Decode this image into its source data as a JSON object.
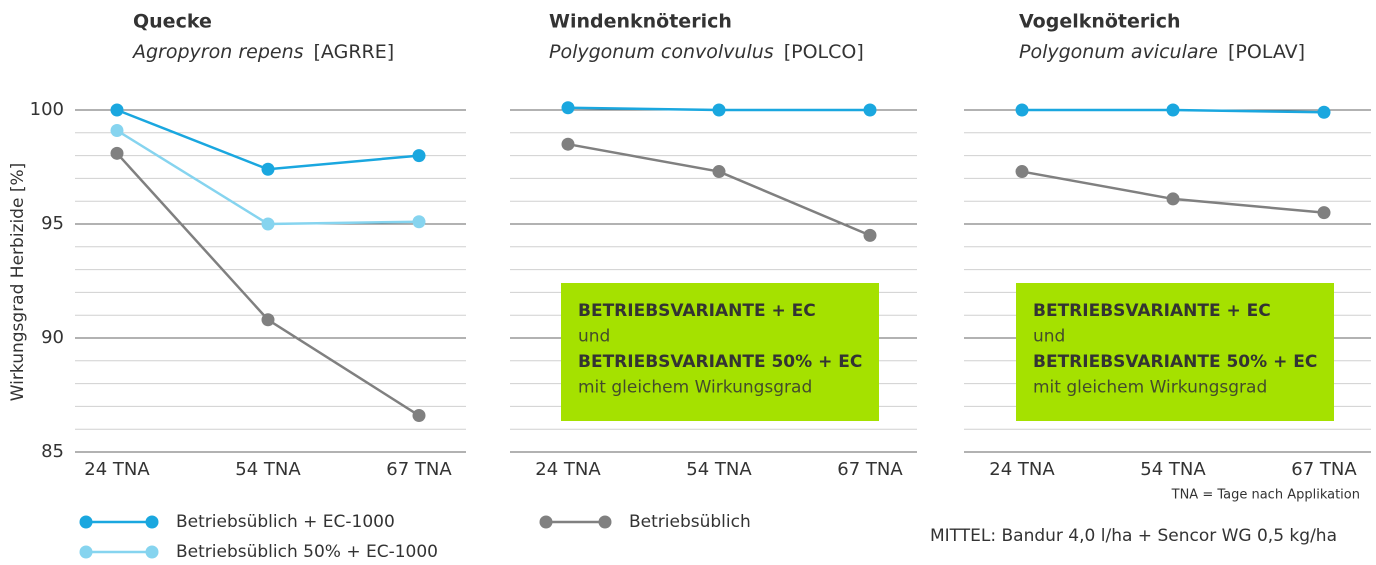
{
  "chart_data": [
    {
      "type": "line",
      "title": "Quecke",
      "species": "Agropyron repens",
      "code": "[AGRRE]",
      "y_label": "Wirkungsgrad Herbizide [%]",
      "categories": [
        "24 TNA",
        "54 TNA",
        "67 TNA"
      ],
      "series": [
        {
          "name": "Betriebsüblich + EC-1000",
          "color": "#1aa7df",
          "values": [
            100,
            97.4,
            98
          ]
        },
        {
          "name": "Betriebsüblich 50% + EC-1000",
          "color": "#86d4ef",
          "values": [
            99.1,
            95.0,
            95.1
          ]
        },
        {
          "name": "Betriebsüblich",
          "color": "#808080",
          "values": [
            98.1,
            90.8,
            86.6
          ]
        }
      ],
      "ylim": [
        85,
        101
      ],
      "yticks": [
        85,
        90,
        95,
        100
      ],
      "yticks_minor": [
        86,
        87,
        88,
        89,
        91,
        92,
        93,
        94,
        96,
        97,
        98,
        99
      ],
      "grid": true
    },
    {
      "type": "line",
      "title": "Windenknöterich",
      "species": "Polygonum convolvulus",
      "code": "[POLCO]",
      "categories": [
        "24 TNA",
        "54 TNA",
        "67 TNA"
      ],
      "series": [
        {
          "color": "#1aa7df",
          "values": [
            100.1,
            100,
            100
          ]
        },
        {
          "color": "#808080",
          "values": [
            98.5,
            97.3,
            94.5
          ]
        }
      ],
      "ylim": [
        85,
        101
      ],
      "yticks": [
        85,
        90,
        95,
        100
      ],
      "yticks_minor": [
        86,
        87,
        88,
        89,
        91,
        92,
        93,
        94,
        96,
        97,
        98,
        99
      ],
      "grid": true,
      "annotation": [
        "BETRIEBSVARIANTE + EC",
        "und",
        "BETRIEBSVARIANTE 50% + EC",
        "mit gleichem Wirkungsgrad"
      ],
      "annotation_color": "#a5e100"
    },
    {
      "type": "line",
      "title": "Vogelknöterich",
      "species": "Polygonum aviculare",
      "code": "[POLAV]",
      "categories": [
        "24 TNA",
        "54 TNA",
        "67 TNA"
      ],
      "series": [
        {
          "color": "#1aa7df",
          "values": [
            100,
            100,
            99.9
          ]
        },
        {
          "color": "#808080",
          "values": [
            97.3,
            96.1,
            95.5
          ]
        }
      ],
      "ylim": [
        85,
        101
      ],
      "yticks": [
        85,
        90,
        95,
        100
      ],
      "yticks_minor": [
        86,
        87,
        88,
        89,
        91,
        92,
        93,
        94,
        96,
        97,
        98,
        99
      ],
      "grid": true,
      "annotation": [
        "BETRIEBSVARIANTE + EC",
        "und",
        "BETRIEBSVARIANTE 50% + EC",
        "mit gleichem Wirkungsgrad"
      ],
      "annotation_color": "#a5e100",
      "footnote": "TNA = Tage nach Applikation",
      "note": "MITTEL: Bandur 4,0 l/ha + Sencor WG 0,5 kg/ha"
    }
  ]
}
